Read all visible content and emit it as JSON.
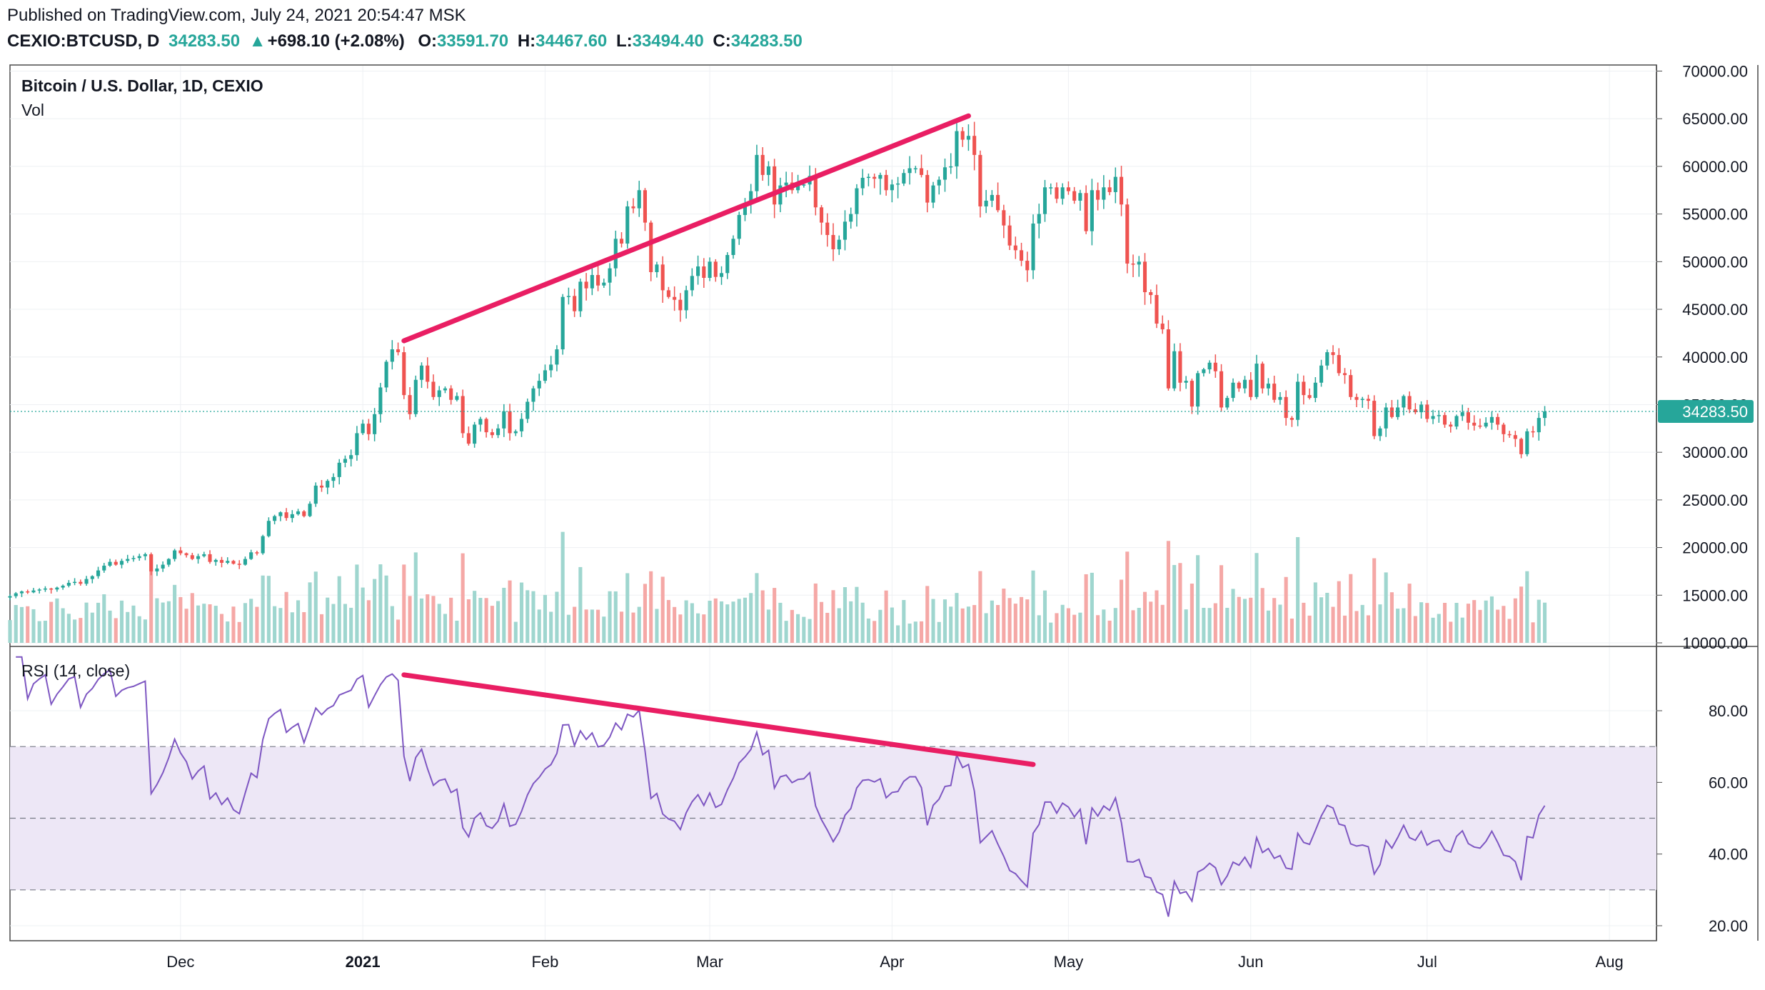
{
  "header": {
    "published": "Published on TradingView.com, July 24, 2021 20:54:47 MSK",
    "symbol": "CEXIO:BTCUSD, D",
    "last": "34283.50",
    "change": "+698.10 (+2.08%)",
    "o_label": "O:",
    "o": "33591.70",
    "h_label": "H:",
    "h": "34467.60",
    "l_label": "L:",
    "l": "33494.40",
    "c_label": "C:",
    "c": "34283.50"
  },
  "colors": {
    "up": "#26a69a",
    "down": "#ef5350",
    "vol_up": "#9fd6cf",
    "vol_down": "#f5a8a6",
    "rsi_line": "#7e57c2",
    "rsi_band": "#ede7f6",
    "trend": "#e91e63",
    "grid": "#eef0f3",
    "price_tag": "#26a69a"
  },
  "chart_data": [
    {
      "type": "candlestick",
      "title": "Bitcoin / U.S. Dollar, 1D, CEXIO",
      "volume_label": "Vol",
      "x_range": [
        "2020-11-02",
        "2021-08-09"
      ],
      "x_ticks": [
        {
          "label": "Dec",
          "date": "2020-12-01",
          "bold": false
        },
        {
          "label": "2021",
          "date": "2021-01-01",
          "bold": true
        },
        {
          "label": "Feb",
          "date": "2021-02-01",
          "bold": false
        },
        {
          "label": "Mar",
          "date": "2021-03-01",
          "bold": false
        },
        {
          "label": "Apr",
          "date": "2021-04-01",
          "bold": false
        },
        {
          "label": "May",
          "date": "2021-05-01",
          "bold": false
        },
        {
          "label": "Jun",
          "date": "2021-06-01",
          "bold": false
        },
        {
          "label": "Jul",
          "date": "2021-07-01",
          "bold": false
        },
        {
          "label": "Aug",
          "date": "2021-08-01",
          "bold": false
        }
      ],
      "y_range": [
        10000,
        70000
      ],
      "y_ticks": [
        "10000.00",
        "15000.00",
        "20000.00",
        "25000.00",
        "30000.00",
        "35000.00",
        "40000.00",
        "45000.00",
        "50000.00",
        "55000.00",
        "60000.00",
        "65000.00",
        "70000.00"
      ],
      "last_price": 34283.5,
      "last_price_label": "34283.50",
      "first_date": "2020-11-02",
      "closes": [
        14900,
        15200,
        15400,
        15300,
        15500,
        15600,
        15700,
        15600,
        15800,
        16000,
        16300,
        16400,
        16200,
        16700,
        17000,
        17600,
        18100,
        18500,
        18200,
        18600,
        18800,
        18900,
        19100,
        19300,
        17500,
        17800,
        18200,
        18800,
        19700,
        19400,
        19200,
        18800,
        19100,
        19300,
        18500,
        18700,
        18400,
        18600,
        18300,
        18200,
        18800,
        19500,
        19400,
        21200,
        22800,
        23300,
        23700,
        23100,
        23500,
        23800,
        23300,
        24600,
        26500,
        26300,
        27000,
        27400,
        28900,
        29300,
        29700,
        32000,
        33000,
        31900,
        34000,
        36800,
        39500,
        40800,
        40500,
        36000,
        34000,
        37600,
        39100,
        37400,
        35800,
        36500,
        36700,
        35500,
        35900,
        32000,
        30900,
        32900,
        33500,
        32100,
        31800,
        32500,
        34300,
        32000,
        32200,
        33500,
        35300,
        36700,
        37500,
        38600,
        39200,
        40800,
        46300,
        46400,
        44800,
        47900,
        47200,
        48600,
        47500,
        47800,
        49300,
        52400,
        51900,
        55800,
        55600,
        57500,
        54100,
        48900,
        49700,
        47000,
        46300,
        46000,
        44900,
        47000,
        48500,
        49500,
        48300,
        50000,
        48400,
        48800,
        50700,
        52400,
        54900,
        56000,
        57400,
        61200,
        59100,
        60000,
        56000,
        58000,
        58300,
        57500,
        58000,
        58100,
        59000,
        55700,
        54100,
        52800,
        51300,
        52300,
        54200,
        55000,
        57700,
        58800,
        58900,
        58700,
        59100,
        57500,
        58100,
        58200,
        59300,
        59800,
        59800,
        59100,
        56200,
        58000,
        58600,
        59900,
        60000,
        63700,
        62800,
        63200,
        61200,
        55800,
        56400,
        57000,
        55400,
        53800,
        51700,
        51200,
        50100,
        49100,
        54000,
        55000,
        57800,
        57800,
        56600,
        57800,
        57400,
        56400,
        57200,
        53200,
        57500,
        56500,
        57800,
        57300,
        58900,
        56000,
        49800,
        49700,
        50000,
        46800,
        46500,
        43500,
        42900,
        36700,
        40600,
        37300,
        37500,
        34800,
        38300,
        38700,
        39400,
        38500,
        34700,
        35700,
        37300,
        36700,
        37600,
        35800,
        39300,
        36700,
        37200,
        35500,
        35800,
        33600,
        33400,
        37400,
        36000,
        35700,
        37300,
        39100,
        40500,
        40200,
        38300,
        38100,
        35800,
        35500,
        35600,
        35400,
        31700,
        32500,
        34700,
        33700,
        34700,
        35900,
        34500,
        34200,
        35000,
        33500,
        33800,
        33900,
        32900,
        32700,
        33800,
        34200,
        33100,
        32800,
        32700,
        33100,
        33700,
        32900,
        31900,
        31800,
        31400,
        29800,
        32200,
        32100,
        33600,
        34283.5
      ],
      "volume_range": [
        0,
        120000
      ],
      "annotations": [
        {
          "type": "trendline",
          "from": {
            "date": "2021-01-08",
            "price": 41700
          },
          "to": {
            "date": "2021-04-14",
            "price": 65300
          }
        }
      ]
    },
    {
      "type": "line",
      "title": "RSI (14, close)",
      "y_range": [
        15,
        95
      ],
      "y_ticks": [
        "20.00",
        "40.00",
        "60.00",
        "80.00"
      ],
      "bands": {
        "upper": 70,
        "middle": 50,
        "lower": 30
      },
      "annotations": [
        {
          "type": "trendline",
          "from": {
            "date": "2021-01-08",
            "value": 90
          },
          "to": {
            "date": "2021-04-25",
            "value": 65
          }
        }
      ]
    }
  ]
}
